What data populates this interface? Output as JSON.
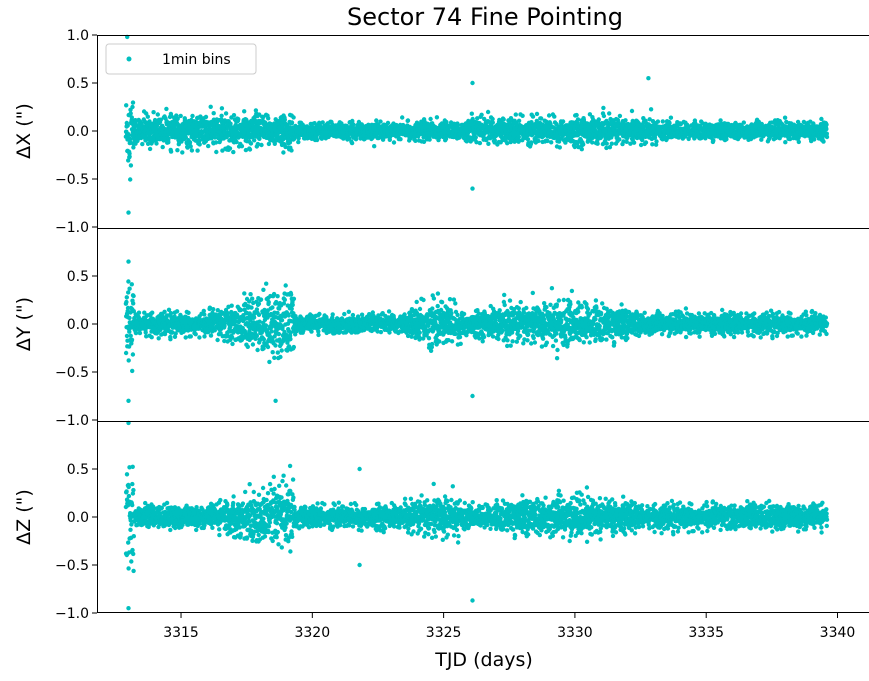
{
  "chart_data": {
    "type": "scatter",
    "title": "Sector 74 Fine Pointing",
    "xlabel": "TJD (days)",
    "xlim": [
      3311.8,
      3341.2
    ],
    "x_ticks": [
      3315,
      3320,
      3325,
      3330,
      3335,
      3340
    ],
    "marker_color": "#00bfbf",
    "legend": {
      "label": "1min bins",
      "placement": "upper left"
    },
    "grid": false,
    "panels": [
      {
        "ylabel": "ΔX (\")",
        "ylim": [
          -1.0,
          1.0
        ],
        "y_ticks": [
          1.0,
          0.5,
          0.0,
          -0.5,
          -1.0
        ],
        "y_tick_labels": [
          "1.0",
          "0.5",
          "0.0",
          "−0.5",
          "−1.0"
        ],
        "series": [
          {
            "name": "1min bins",
            "segments": [
              {
                "x_start": 3312.9,
                "x_end": 3313.2,
                "spread": 0.55
              },
              {
                "x_start": 3313.2,
                "x_end": 3319.3,
                "spread": 0.22
              },
              {
                "x_start": 3319.3,
                "x_end": 3326.0,
                "spread": 0.12
              },
              {
                "x_start": 3326.0,
                "x_end": 3333.0,
                "spread": 0.18
              },
              {
                "x_start": 3333.0,
                "x_end": 3339.6,
                "spread": 0.12
              }
            ],
            "outliers": [
              [
                3312.95,
                0.98
              ],
              [
                3313.0,
                -0.85
              ],
              [
                3326.1,
                0.5
              ],
              [
                3326.1,
                -0.6
              ],
              [
                3332.8,
                0.55
              ]
            ]
          }
        ]
      },
      {
        "ylabel": "ΔY (\")",
        "ylim": [
          -1.0,
          1.0
        ],
        "y_ticks": [
          0.5,
          0.0,
          -0.5,
          -1.0
        ],
        "y_tick_labels": [
          "0.5",
          "0.0",
          "−0.5",
          "−1.0"
        ],
        "series": [
          {
            "name": "1min bins",
            "segments": [
              {
                "x_start": 3312.9,
                "x_end": 3313.2,
                "spread": 0.5
              },
              {
                "x_start": 3313.2,
                "x_end": 3316.0,
                "spread": 0.15
              },
              {
                "x_start": 3316.0,
                "x_end": 3319.3,
                "spread": 0.55,
                "ramp": "up"
              },
              {
                "x_start": 3319.3,
                "x_end": 3323.5,
                "spread": 0.12
              },
              {
                "x_start": 3323.5,
                "x_end": 3326.0,
                "spread": 0.32,
                "ramp": "bump"
              },
              {
                "x_start": 3326.0,
                "x_end": 3333.0,
                "spread": 0.3,
                "ramp": "bump"
              },
              {
                "x_start": 3333.0,
                "x_end": 3339.6,
                "spread": 0.14
              }
            ],
            "outliers": [
              [
                3313.0,
                -0.8
              ],
              [
                3313.0,
                0.65
              ],
              [
                3326.1,
                -0.75
              ],
              [
                3318.6,
                -0.8
              ]
            ]
          }
        ]
      },
      {
        "ylabel": "ΔZ (\")",
        "ylim": [
          -1.0,
          1.0
        ],
        "y_ticks": [
          0.5,
          0.0,
          -0.5,
          -1.0
        ],
        "y_tick_labels": [
          "0.5",
          "0.0",
          "−0.5",
          "−1.0"
        ],
        "series": [
          {
            "name": "1min bins",
            "segments": [
              {
                "x_start": 3312.9,
                "x_end": 3313.2,
                "spread": 0.75
              },
              {
                "x_start": 3313.2,
                "x_end": 3316.0,
                "spread": 0.15
              },
              {
                "x_start": 3316.0,
                "x_end": 3319.3,
                "spread": 0.5,
                "ramp": "up"
              },
              {
                "x_start": 3319.3,
                "x_end": 3323.5,
                "spread": 0.15
              },
              {
                "x_start": 3323.5,
                "x_end": 3326.0,
                "spread": 0.3,
                "ramp": "bump"
              },
              {
                "x_start": 3326.0,
                "x_end": 3333.0,
                "spread": 0.28,
                "ramp": "bump"
              },
              {
                "x_start": 3333.0,
                "x_end": 3339.6,
                "spread": 0.17
              }
            ],
            "outliers": [
              [
                3313.0,
                -0.95
              ],
              [
                3313.0,
                0.98
              ],
              [
                3326.1,
                -0.87
              ],
              [
                3321.8,
                0.5
              ],
              [
                3321.8,
                -0.5
              ]
            ]
          }
        ]
      }
    ]
  }
}
